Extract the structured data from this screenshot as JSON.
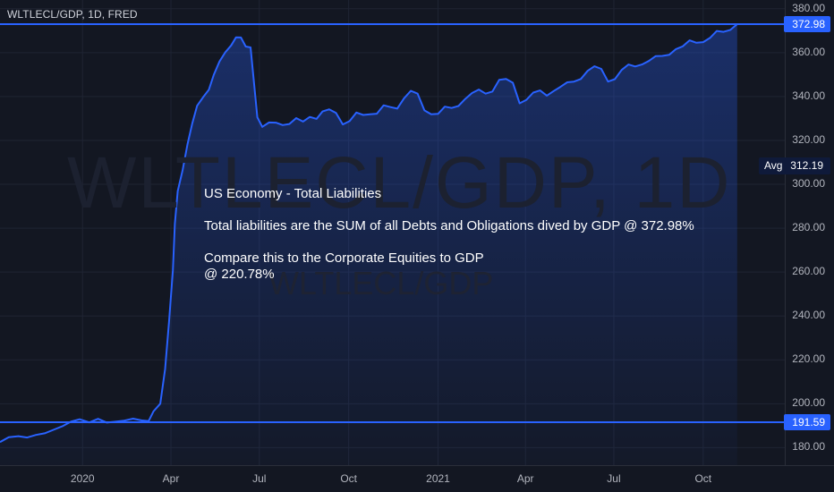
{
  "header": {
    "symbol": "WLTLECL/GDP, 1D, FRED"
  },
  "watermark": {
    "big": "WLTLECL/GDP, 1D",
    "small": "WLTLECL/GDP"
  },
  "annotation": {
    "line1": "US Economy - Total Liabilities",
    "line2": "Total liabilities are the SUM of all Debts and Obligations dived by GDP @ 372.98%",
    "line3": "Compare this to the Corporate Equities to GDP",
    "line4": "@ 220.78%"
  },
  "price_tags": {
    "last": "372.98",
    "low": "191.59"
  },
  "avg_tag": {
    "label": "Avg",
    "value": "312.19"
  },
  "colors": {
    "background": "#131722",
    "line": "#2962ff",
    "grid": "#1f2433",
    "text": "#b2b5be"
  },
  "chart_data": {
    "type": "area",
    "title": "WLTLECL/GDP, 1D, FRED",
    "ylim": [
      172,
      384
    ],
    "y_ticks": [
      "380.00",
      "360.00",
      "340.00",
      "320.00",
      "300.00",
      "280.00",
      "260.00",
      "240.00",
      "220.00",
      "200.00",
      "180.00"
    ],
    "x_ticks": [
      {
        "label": "2020",
        "date": "2020-01-01"
      },
      {
        "label": "Apr",
        "date": "2020-04-01"
      },
      {
        "label": "Jul",
        "date": "2020-07-01"
      },
      {
        "label": "Oct",
        "date": "2020-10-01"
      },
      {
        "label": "2021",
        "date": "2021-01-01"
      },
      {
        "label": "Apr",
        "date": "2021-04-01"
      },
      {
        "label": "Jul",
        "date": "2021-07-01"
      },
      {
        "label": "Oct",
        "date": "2021-10-01"
      }
    ],
    "x_range": [
      "2019-10-08",
      "2021-12-24"
    ],
    "horizontal_lines": [
      372.98,
      191.59
    ],
    "average": 312.19,
    "series": [
      {
        "points": [
          [
            "2019-10-08",
            182.5
          ],
          [
            "2019-10-17",
            184.7
          ],
          [
            "2019-10-27",
            185.2
          ],
          [
            "2019-11-05",
            184.6
          ],
          [
            "2019-11-14",
            185.8
          ],
          [
            "2019-11-23",
            186.5
          ],
          [
            "2019-12-02",
            188.1
          ],
          [
            "2019-12-11",
            189.7
          ],
          [
            "2019-12-20",
            191.8
          ],
          [
            "2019-12-29",
            192.9
          ],
          [
            "2020-01-08",
            191.5
          ],
          [
            "2020-01-17",
            193.1
          ],
          [
            "2020-01-26",
            191.4
          ],
          [
            "2020-02-04",
            191.8
          ],
          [
            "2020-02-13",
            192.3
          ],
          [
            "2020-02-22",
            193.2
          ],
          [
            "2020-03-02",
            192.4
          ],
          [
            "2020-03-09",
            192.1
          ],
          [
            "2020-03-14",
            196.5
          ],
          [
            "2020-03-21",
            200.0
          ],
          [
            "2020-03-26",
            215.8
          ],
          [
            "2020-03-30",
            237.4
          ],
          [
            "2020-04-03",
            260.8
          ],
          [
            "2020-04-05",
            282.0
          ],
          [
            "2020-04-08",
            296.9
          ],
          [
            "2020-04-13",
            306.5
          ],
          [
            "2020-04-18",
            318.2
          ],
          [
            "2020-04-23",
            327.8
          ],
          [
            "2020-04-28",
            335.8
          ],
          [
            "2020-05-04",
            339.6
          ],
          [
            "2020-05-10",
            343.1
          ],
          [
            "2020-05-15",
            349.8
          ],
          [
            "2020-05-21",
            356.0
          ],
          [
            "2020-05-27",
            360.2
          ],
          [
            "2020-06-02",
            363.3
          ],
          [
            "2020-06-07",
            367.0
          ],
          [
            "2020-06-12",
            366.9
          ],
          [
            "2020-06-17",
            362.8
          ],
          [
            "2020-06-22",
            362.4
          ],
          [
            "2020-06-29",
            330.5
          ],
          [
            "2020-07-04",
            326.2
          ],
          [
            "2020-07-11",
            328.2
          ],
          [
            "2020-07-18",
            328.1
          ],
          [
            "2020-07-25",
            327.0
          ],
          [
            "2020-08-01",
            327.5
          ],
          [
            "2020-08-08",
            330.2
          ],
          [
            "2020-08-15",
            328.6
          ],
          [
            "2020-08-22",
            330.7
          ],
          [
            "2020-08-29",
            329.8
          ],
          [
            "2020-09-04",
            333.2
          ],
          [
            "2020-09-11",
            334.2
          ],
          [
            "2020-09-18",
            332.5
          ],
          [
            "2020-09-25",
            327.3
          ],
          [
            "2020-10-02",
            328.8
          ],
          [
            "2020-10-09",
            332.7
          ],
          [
            "2020-10-16",
            331.6
          ],
          [
            "2020-10-23",
            331.9
          ],
          [
            "2020-10-30",
            332.2
          ],
          [
            "2020-11-06",
            336.0
          ],
          [
            "2020-11-13",
            335.2
          ],
          [
            "2020-11-20",
            334.5
          ],
          [
            "2020-11-27",
            339.2
          ],
          [
            "2020-12-04",
            342.6
          ],
          [
            "2020-12-11",
            341.3
          ],
          [
            "2020-12-18",
            333.7
          ],
          [
            "2020-12-25",
            331.9
          ],
          [
            "2021-01-01",
            332.1
          ],
          [
            "2021-01-08",
            335.4
          ],
          [
            "2021-01-15",
            334.8
          ],
          [
            "2021-01-22",
            335.7
          ],
          [
            "2021-01-29",
            338.9
          ],
          [
            "2021-02-05",
            341.6
          ],
          [
            "2021-02-12",
            343.2
          ],
          [
            "2021-02-19",
            341.3
          ],
          [
            "2021-02-26",
            342.3
          ],
          [
            "2021-03-05",
            347.6
          ],
          [
            "2021-03-12",
            348.0
          ],
          [
            "2021-03-19",
            346.3
          ],
          [
            "2021-03-26",
            336.9
          ],
          [
            "2021-04-02",
            338.5
          ],
          [
            "2021-04-09",
            341.8
          ],
          [
            "2021-04-16",
            342.8
          ],
          [
            "2021-04-23",
            340.4
          ],
          [
            "2021-04-30",
            342.5
          ],
          [
            "2021-05-07",
            344.4
          ],
          [
            "2021-05-14",
            346.5
          ],
          [
            "2021-05-21",
            346.8
          ],
          [
            "2021-05-28",
            348.0
          ],
          [
            "2021-06-04",
            351.7
          ],
          [
            "2021-06-11",
            353.8
          ],
          [
            "2021-06-18",
            352.6
          ],
          [
            "2021-06-25",
            346.8
          ],
          [
            "2021-07-02",
            347.9
          ],
          [
            "2021-07-09",
            352.1
          ],
          [
            "2021-07-16",
            354.6
          ],
          [
            "2021-07-23",
            353.7
          ],
          [
            "2021-07-30",
            354.6
          ],
          [
            "2021-08-06",
            356.2
          ],
          [
            "2021-08-13",
            358.4
          ],
          [
            "2021-08-20",
            358.5
          ],
          [
            "2021-08-27",
            359.0
          ],
          [
            "2021-09-03",
            361.6
          ],
          [
            "2021-09-10",
            362.9
          ],
          [
            "2021-09-17",
            365.6
          ],
          [
            "2021-09-24",
            364.5
          ],
          [
            "2021-10-01",
            364.8
          ],
          [
            "2021-10-08",
            366.7
          ],
          [
            "2021-10-15",
            369.9
          ],
          [
            "2021-10-22",
            369.5
          ],
          [
            "2021-10-29",
            370.4
          ],
          [
            "2021-11-05",
            372.98
          ]
        ]
      }
    ]
  }
}
